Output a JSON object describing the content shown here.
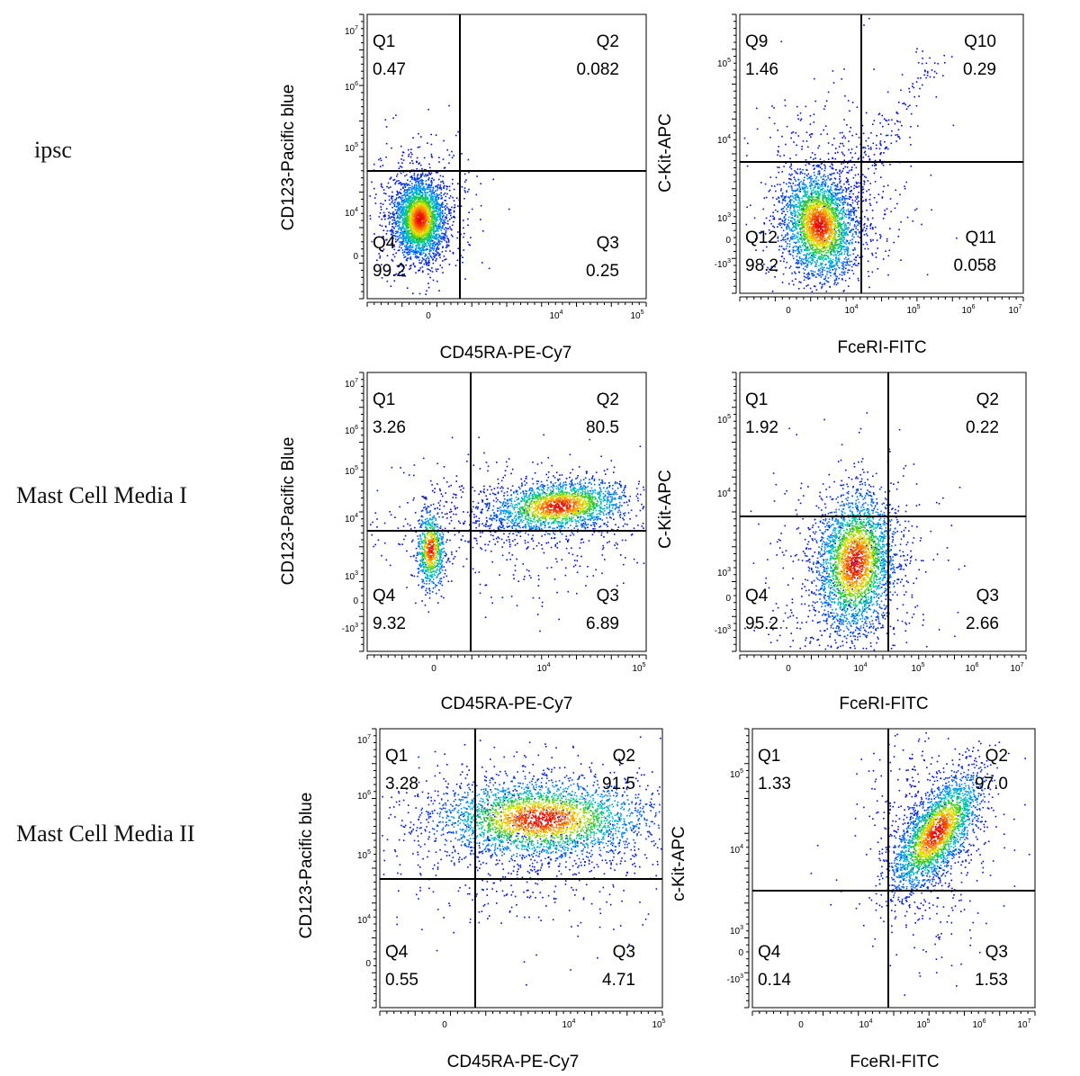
{
  "figure": {
    "row_labels": [
      "ipsc",
      "Mast Cell Media I",
      "Mast Cell Media II"
    ]
  },
  "chart_data": [
    {
      "type": "scatter",
      "row": 0,
      "col": 0,
      "xlabel": "CD45RA-PE-Cy7",
      "ylabel": "CD123-Pacific blue",
      "x_ticks": [
        "0",
        "10^4",
        "10^5"
      ],
      "y_ticks": [
        "10^7",
        "10^6",
        "10^5",
        "10^4",
        "0"
      ],
      "quadrants": [
        {
          "name": "Q1",
          "value": "0.47"
        },
        {
          "name": "Q2",
          "value": "0.082"
        },
        {
          "name": "Q4",
          "value": "99.2"
        },
        {
          "name": "Q3",
          "value": "0.25"
        }
      ]
    },
    {
      "type": "scatter",
      "row": 0,
      "col": 1,
      "xlabel": "FceRI-FITC",
      "ylabel": "C-Kit-APC",
      "x_ticks": [
        "0",
        "10^4",
        "10^5",
        "10^6",
        "10^7"
      ],
      "y_ticks": [
        "10^5",
        "10^4",
        "10^3",
        "0",
        "-10^3"
      ],
      "quadrants": [
        {
          "name": "Q9",
          "value": "1.46"
        },
        {
          "name": "Q10",
          "value": "0.29"
        },
        {
          "name": "Q12",
          "value": "98.2"
        },
        {
          "name": "Q11",
          "value": "0.058"
        }
      ]
    },
    {
      "type": "scatter",
      "row": 1,
      "col": 0,
      "xlabel": "CD45RA-PE-Cy7",
      "ylabel": "CD123-Pacific Blue",
      "x_ticks": [
        "0",
        "10^4",
        "10^5"
      ],
      "y_ticks": [
        "10^7",
        "10^6",
        "10^5",
        "10^4",
        "10^3",
        "0",
        "-10^3"
      ],
      "quadrants": [
        {
          "name": "Q1",
          "value": "3.26"
        },
        {
          "name": "Q2",
          "value": "80.5"
        },
        {
          "name": "Q4",
          "value": "9.32"
        },
        {
          "name": "Q3",
          "value": "6.89"
        }
      ]
    },
    {
      "type": "scatter",
      "row": 1,
      "col": 1,
      "xlabel": "FceRI-FITC",
      "ylabel": "C-Kit-APC",
      "x_ticks": [
        "0",
        "10^4",
        "10^5",
        "10^6",
        "10^7"
      ],
      "y_ticks": [
        "10^5",
        "10^4",
        "10^3",
        "0",
        "-10^3"
      ],
      "quadrants": [
        {
          "name": "Q1",
          "value": "1.92"
        },
        {
          "name": "Q2",
          "value": "0.22"
        },
        {
          "name": "Q4",
          "value": "95.2"
        },
        {
          "name": "Q3",
          "value": "2.66"
        }
      ]
    },
    {
      "type": "scatter",
      "row": 2,
      "col": 0,
      "xlabel": "CD45RA-PE-Cy7",
      "ylabel": "CD123-Pacific blue",
      "x_ticks": [
        "0",
        "10^4",
        "10^5"
      ],
      "y_ticks": [
        "10^7",
        "10^6",
        "10^5",
        "10^4",
        "0"
      ],
      "quadrants": [
        {
          "name": "Q1",
          "value": "3.28"
        },
        {
          "name": "Q2",
          "value": "91.5"
        },
        {
          "name": "Q4",
          "value": "0.55"
        },
        {
          "name": "Q3",
          "value": "4.71"
        }
      ]
    },
    {
      "type": "scatter",
      "row": 2,
      "col": 1,
      "xlabel": "FceRI-FITC",
      "ylabel": "c-Kit-APC",
      "x_ticks": [
        "0",
        "10^4",
        "10^5",
        "10^6",
        "10^7"
      ],
      "y_ticks": [
        "10^5",
        "10^4",
        "10^3",
        "0",
        "-10^3"
      ],
      "quadrants": [
        {
          "name": "Q1",
          "value": "1.33"
        },
        {
          "name": "Q2",
          "value": "97.0"
        },
        {
          "name": "Q4",
          "value": "0.14"
        },
        {
          "name": "Q3",
          "value": "1.53"
        }
      ]
    }
  ]
}
